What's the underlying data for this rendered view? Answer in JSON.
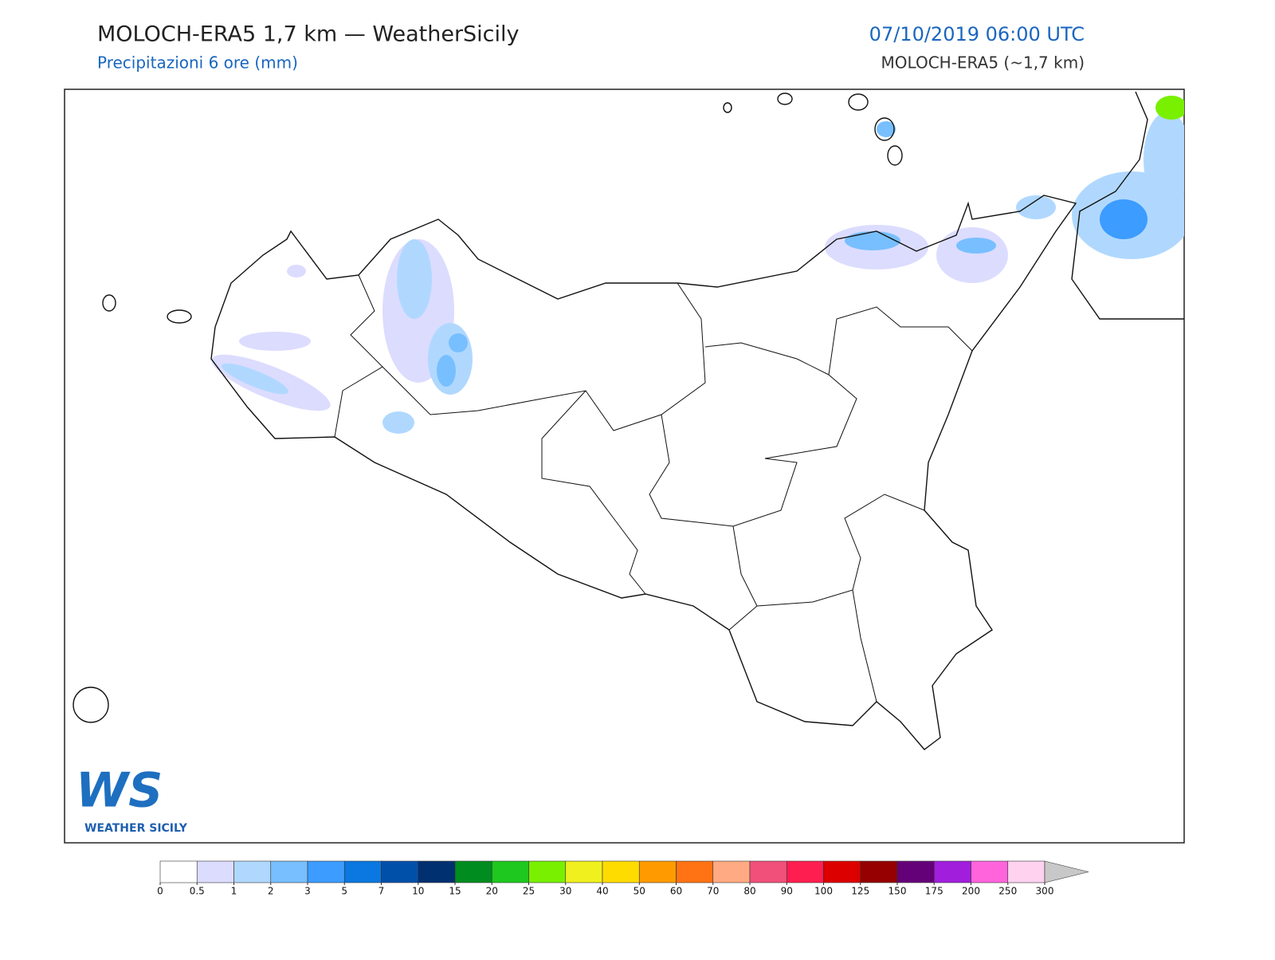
{
  "header": {
    "title": "MOLOCH-ERA5 1,7 km — WeatherSicily",
    "subtitle": "Precipitazioni 6 ore (mm)",
    "datetime": "07/10/2019 06:00 UTC",
    "model": "MOLOCH-ERA5 (~1,7 km)"
  },
  "logo": {
    "mark": "WS",
    "text": "WEATHER SICILY"
  },
  "colorbar": {
    "ticks": [
      0,
      0.5,
      1,
      2,
      3,
      5,
      7,
      10,
      15,
      20,
      25,
      30,
      40,
      50,
      60,
      70,
      80,
      90,
      100,
      125,
      150,
      175,
      200,
      250,
      300
    ],
    "colors": [
      "#ffffff",
      "#dcdcff",
      "#b0d8ff",
      "#78bfff",
      "#3c9cff",
      "#0a78e0",
      "#0050aa",
      "#003070",
      "#008c1e",
      "#1ec81e",
      "#78f000",
      "#f0f01e",
      "#ffdc00",
      "#ff9b00",
      "#ff7314",
      "#ffaa82",
      "#f0507a",
      "#ff1e50",
      "#dc0000",
      "#960000",
      "#640078",
      "#a01edc",
      "#ff64dc",
      "#ffd2f0"
    ],
    "extend_color": "#c8c8c8"
  }
}
